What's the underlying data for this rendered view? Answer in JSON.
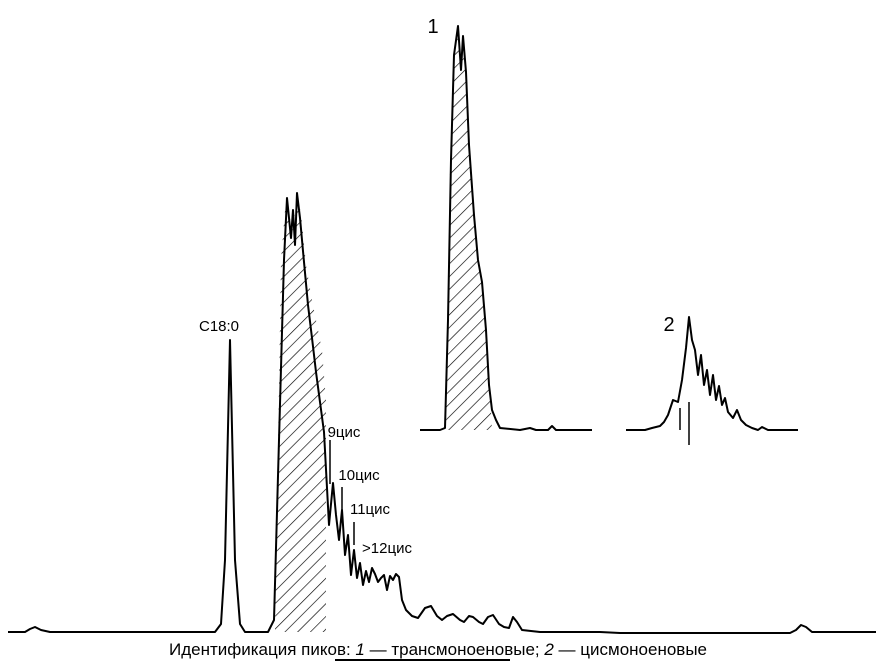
{
  "labels": {
    "c18": "C18:0",
    "cis9": "9цис",
    "cis10": "10цис",
    "cis11": "11цис",
    "cis12": ">12цис",
    "inset1": "1",
    "inset2": "2"
  },
  "caption": {
    "prefix": "Идентификация пиков: ",
    "n1": "1",
    "t1": " — трансмоноеновые; ",
    "n2": "2",
    "t2": " — цисмоноеновые"
  },
  "colors": {
    "line": "#000000",
    "background": "#ffffff"
  }
}
